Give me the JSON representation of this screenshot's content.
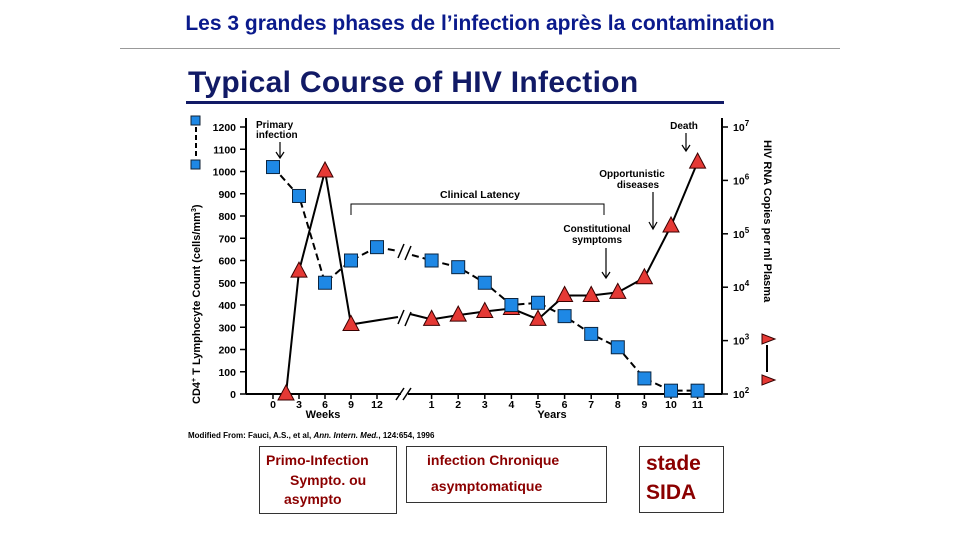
{
  "slide": {
    "title": "Les 3 grandes phases de l’infection après la contamination"
  },
  "figure": {
    "title": "Typical Course of HIV Infection",
    "citation_prefix": "Modified From:  Fauci, A.S., et al, ",
    "citation_journal": "Ann. Intern. Med.",
    "citation_suffix": ", 124:654, 1996"
  },
  "chart_data": {
    "type": "line",
    "x_ticks": {
      "weeks": [
        "0",
        "3",
        "6",
        "9",
        "12"
      ],
      "years": [
        "1",
        "2",
        "3",
        "4",
        "5",
        "6",
        "7",
        "8",
        "9",
        "10",
        "11"
      ]
    },
    "xlabel_weeks": "Weeks",
    "xlabel_years": "Years",
    "ylabel_left": "CD4+ T Lymphocyte Count (cells/mm3)",
    "ylabel_right": "HIV RNA Copies per ml Plasma",
    "ylim_left": [
      0,
      1200
    ],
    "y_ticks_left": [
      "0",
      "100",
      "200",
      "300",
      "400",
      "500",
      "600",
      "700",
      "800",
      "900",
      "1000",
      "1100",
      "1200"
    ],
    "ylim_right": [
      "10^2",
      "10^7"
    ],
    "y_ticks_right": [
      {
        "base": "10",
        "exp": "2"
      },
      {
        "base": "10",
        "exp": "3"
      },
      {
        "base": "10",
        "exp": "4"
      },
      {
        "base": "10",
        "exp": "5"
      },
      {
        "base": "10",
        "exp": "6"
      },
      {
        "base": "10",
        "exp": "7"
      }
    ],
    "series": [
      {
        "marker": "square",
        "color": "#1e88e5",
        "style": "dashed",
        "axis": "left",
        "points": [
          {
            "x": "0 weeks",
            "y": 1020
          },
          {
            "x": "3 weeks",
            "y": 890
          },
          {
            "x": "6 weeks",
            "y": 500
          },
          {
            "x": "9 weeks",
            "y": 600
          },
          {
            "x": "12 weeks",
            "y": 660
          },
          {
            "x": "1 year",
            "y": 600
          },
          {
            "x": "2 years",
            "y": 570
          },
          {
            "x": "3 years",
            "y": 500
          },
          {
            "x": "4 years",
            "y": 400
          },
          {
            "x": "5 years",
            "y": 410
          },
          {
            "x": "6 years",
            "y": 350
          },
          {
            "x": "7 years",
            "y": 270
          },
          {
            "x": "8 years",
            "y": 210
          },
          {
            "x": "9 years",
            "y": 70
          },
          {
            "x": "10 years",
            "y": 15
          },
          {
            "x": "11 years",
            "y": 15
          }
        ]
      },
      {
        "marker": "triangle",
        "color": "#e53935",
        "style": "solid",
        "axis": "right",
        "points": [
          {
            "x": "1.5 weeks",
            "y": 100
          },
          {
            "x": "3 weeks",
            "y": 20000
          },
          {
            "x": "6 weeks",
            "y": 1500000
          },
          {
            "x": "9 weeks",
            "y": 2000
          },
          {
            "x": "1 year",
            "y": 2500
          },
          {
            "x": "2 years",
            "y": 3000
          },
          {
            "x": "3 years",
            "y": 3500
          },
          {
            "x": "4 years",
            "y": 4000
          },
          {
            "x": "5 years",
            "y": 2500
          },
          {
            "x": "6 years",
            "y": 7000
          },
          {
            "x": "7 years",
            "y": 7000
          },
          {
            "x": "8 years",
            "y": 8000
          },
          {
            "x": "9 years",
            "y": 15000
          },
          {
            "x": "10 years",
            "y": 140000
          },
          {
            "x": "11 years",
            "y": 2200000
          }
        ]
      }
    ],
    "annotations": {
      "primary_line1": "Primary",
      "primary_line2": "infection",
      "clinical_latency": "Clinical Latency",
      "constitutional_line1": "Constitutional",
      "constitutional_line2": "symptoms",
      "opportunistic_line1": "Opportunistic",
      "opportunistic_line2": "diseases",
      "death": "Death"
    },
    "grid": false
  },
  "phases": {
    "primo": {
      "line1": "Primo-Infection",
      "line2": "Sympto. ou",
      "line3": "asympto"
    },
    "chronique": {
      "line1": "infection Chronique",
      "line2": "asymptomatique"
    },
    "sida": {
      "line1": "stade",
      "line2": "SIDA"
    }
  }
}
